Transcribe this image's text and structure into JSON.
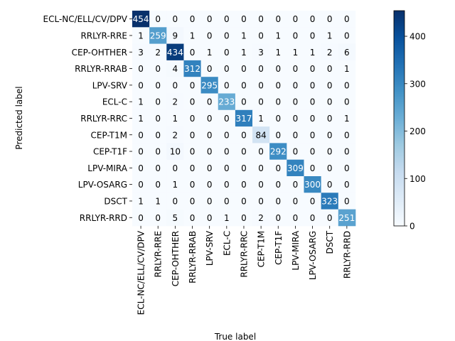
{
  "chart_data": {
    "type": "heatmap",
    "title": "",
    "xlabel": "True label",
    "ylabel": "Predicted label",
    "labels": [
      "ECL-NC/ELL/CV/DPV",
      "RRLYR-RRE",
      "CEP-OHTHER",
      "RRLYR-RRAB",
      "LPV-SRV",
      "ECL-C",
      "RRLYR-RRC",
      "CEP-T1M",
      "CEP-T1F",
      "LPV-MIRA",
      "LPV-OSARG",
      "DSCT",
      "RRLYR-RRD"
    ],
    "matrix": [
      [
        454,
        0,
        0,
        0,
        0,
        0,
        0,
        0,
        0,
        0,
        0,
        0,
        0
      ],
      [
        1,
        259,
        9,
        1,
        0,
        0,
        1,
        0,
        1,
        0,
        0,
        1,
        0
      ],
      [
        3,
        2,
        434,
        0,
        1,
        0,
        1,
        3,
        1,
        1,
        1,
        2,
        6
      ],
      [
        0,
        0,
        4,
        312,
        0,
        0,
        0,
        0,
        0,
        0,
        0,
        0,
        1
      ],
      [
        0,
        0,
        0,
        0,
        295,
        0,
        0,
        0,
        0,
        0,
        0,
        0,
        0
      ],
      [
        1,
        0,
        2,
        0,
        0,
        233,
        0,
        0,
        0,
        0,
        0,
        0,
        0
      ],
      [
        1,
        0,
        1,
        0,
        0,
        0,
        317,
        1,
        0,
        0,
        0,
        0,
        1
      ],
      [
        0,
        0,
        2,
        0,
        0,
        0,
        0,
        84,
        0,
        0,
        0,
        0,
        0
      ],
      [
        0,
        0,
        10,
        0,
        0,
        0,
        0,
        0,
        292,
        0,
        0,
        0,
        0
      ],
      [
        0,
        0,
        0,
        0,
        0,
        0,
        0,
        0,
        0,
        309,
        0,
        0,
        0
      ],
      [
        0,
        0,
        1,
        0,
        0,
        0,
        0,
        0,
        0,
        0,
        300,
        0,
        0
      ],
      [
        1,
        1,
        0,
        0,
        0,
        0,
        0,
        0,
        0,
        0,
        0,
        323,
        0
      ],
      [
        0,
        0,
        5,
        0,
        0,
        1,
        0,
        2,
        0,
        0,
        0,
        0,
        251
      ]
    ],
    "colormap": "Blues",
    "vmin": 0,
    "vmax": 454,
    "colorbar_ticks": [
      0,
      100,
      200,
      300,
      400
    ],
    "grid": false
  }
}
